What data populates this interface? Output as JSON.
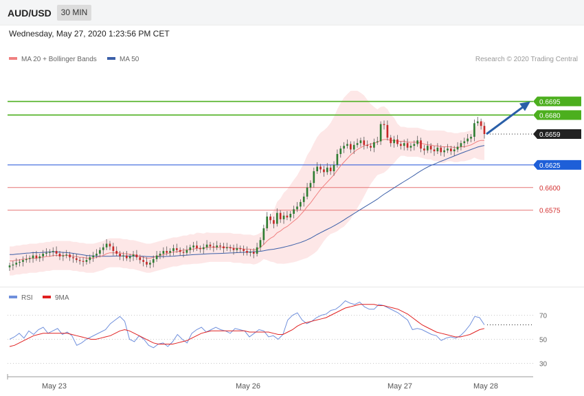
{
  "header": {
    "symbol": "AUD/USD",
    "timeframe": "30 MIN"
  },
  "datetime": "Wednesday, May 27, 2020 1:23:56 PM CET",
  "legend": {
    "ma20_label": "MA 20 + Bollinger Bands",
    "ma50_label": "MA 50",
    "credit": "Research © 2020 Trading Central",
    "rsi_label": "RSI",
    "rsi_ma_label": "9MA"
  },
  "colors": {
    "up": "#2e7d32",
    "down": "#c62828",
    "band": "#fde3e3",
    "ma20": "#f08080",
    "ma50": "#3b5fa8",
    "resistance": "#4caf1e",
    "support_blue": "#1e4fd8",
    "support_red": "#e57373",
    "current": "#222222",
    "arrow": "#2a5fa8",
    "rsi": "#6f8fdc",
    "rsi_ma": "#e02020"
  },
  "chart_data": [
    {
      "type": "candlestick",
      "title": "AUD/USD 30 MIN",
      "x_ticks": [
        "May 23",
        "May 26",
        "May 27",
        "May 28"
      ],
      "ylim": [
        0.6505,
        0.6725
      ],
      "levels": [
        {
          "label": "0.6695",
          "value": 0.6695,
          "kind": "resistance"
        },
        {
          "label": "0.6680",
          "value": 0.668,
          "kind": "resistance"
        },
        {
          "label": "0.6659",
          "value": 0.6659,
          "kind": "current"
        },
        {
          "label": "0.6625",
          "value": 0.6625,
          "kind": "support_blue"
        },
        {
          "label": "0.6600",
          "value": 0.66,
          "kind": "support_red"
        },
        {
          "label": "0.6575",
          "value": 0.6575,
          "kind": "support_red"
        }
      ],
      "target_arrow": {
        "from": 0.6659,
        "to": 0.6695
      },
      "close": [
        0.6514,
        0.6515,
        0.6517,
        0.6518,
        0.652,
        0.6521,
        0.6522,
        0.6525,
        0.6522,
        0.6524,
        0.6527,
        0.6528,
        0.6529,
        0.653,
        0.6527,
        0.6524,
        0.6525,
        0.6526,
        0.6523,
        0.6522,
        0.652,
        0.6519,
        0.6518,
        0.652,
        0.6523,
        0.6525,
        0.6527,
        0.6531,
        0.6534,
        0.6538,
        0.6535,
        0.653,
        0.6527,
        0.6524,
        0.6525,
        0.6522,
        0.6524,
        0.6526,
        0.6523,
        0.652,
        0.6518,
        0.6515,
        0.6517,
        0.6521,
        0.6525,
        0.6527,
        0.653,
        0.6528,
        0.653,
        0.6533,
        0.6531,
        0.6529,
        0.6528,
        0.6531,
        0.6534,
        0.6536,
        0.6533,
        0.6532,
        0.6534,
        0.6537,
        0.6535,
        0.6534,
        0.6536,
        0.6535,
        0.6533,
        0.6534,
        0.6533,
        0.6531,
        0.6533,
        0.6532,
        0.653,
        0.6528,
        0.6529,
        0.6527,
        0.6534,
        0.6542,
        0.6555,
        0.6568,
        0.6564,
        0.656,
        0.6572,
        0.6565,
        0.6569,
        0.6567,
        0.6571,
        0.6576,
        0.6579,
        0.6584,
        0.659,
        0.66,
        0.6605,
        0.6618,
        0.6623,
        0.662,
        0.6617,
        0.6622,
        0.6618,
        0.6625,
        0.6637,
        0.6643,
        0.6646,
        0.6648,
        0.6642,
        0.6647,
        0.6649,
        0.6652,
        0.6647,
        0.6646,
        0.6644,
        0.665,
        0.6651,
        0.667,
        0.6669,
        0.6655,
        0.6649,
        0.6653,
        0.6648,
        0.6646,
        0.6649,
        0.6644,
        0.6646,
        0.6648,
        0.6652,
        0.6643,
        0.6641,
        0.6646,
        0.6642,
        0.664,
        0.6644,
        0.6639,
        0.6641,
        0.6643,
        0.664,
        0.6642,
        0.6645,
        0.6649,
        0.6651,
        0.6654,
        0.6656,
        0.6671,
        0.6673,
        0.6668,
        0.6659
      ],
      "ma20": [
        0.6519,
        0.6519,
        0.652,
        0.652,
        0.6521,
        0.6521,
        0.6522,
        0.6522,
        0.6522,
        0.6523,
        0.6523,
        0.6524,
        0.6524,
        0.6525,
        0.6525,
        0.6525,
        0.6525,
        0.6525,
        0.6525,
        0.6524,
        0.6524,
        0.6523,
        0.6523,
        0.6522,
        0.6522,
        0.6522,
        0.6523,
        0.6524,
        0.6525,
        0.6527,
        0.6528,
        0.6528,
        0.6528,
        0.6528,
        0.6527,
        0.6527,
        0.6526,
        0.6526,
        0.6525,
        0.6524,
        0.6523,
        0.6522,
        0.6522,
        0.6523,
        0.6524,
        0.6525,
        0.6526,
        0.6527,
        0.6528,
        0.6529,
        0.6529,
        0.653,
        0.6531,
        0.6531,
        0.6532,
        0.6532,
        0.6533,
        0.6533,
        0.6533,
        0.6534,
        0.6534,
        0.6534,
        0.6534,
        0.6534,
        0.6534,
        0.6534,
        0.6534,
        0.6533,
        0.6533,
        0.6533,
        0.6532,
        0.6532,
        0.6532,
        0.6531,
        0.6532,
        0.6534,
        0.6537,
        0.6541,
        0.6544,
        0.6546,
        0.655,
        0.6552,
        0.6555,
        0.6557,
        0.656,
        0.6563,
        0.6566,
        0.657,
        0.6574,
        0.6579,
        0.6583,
        0.6588,
        0.6593,
        0.6598,
        0.6602,
        0.6606,
        0.661,
        0.6614,
        0.6619,
        0.6624,
        0.6628,
        0.6632,
        0.6636,
        0.6639,
        0.6642,
        0.6644,
        0.6646,
        0.6647,
        0.6648,
        0.6649,
        0.665,
        0.6652,
        0.6653,
        0.6653,
        0.6652,
        0.6652,
        0.6651,
        0.6651,
        0.6651,
        0.665,
        0.665,
        0.665,
        0.665,
        0.6649,
        0.6648,
        0.6647,
        0.6647,
        0.6646,
        0.6646,
        0.6645,
        0.6645,
        0.6645,
        0.6645,
        0.6644,
        0.6644,
        0.6645,
        0.6645,
        0.6646,
        0.6647,
        0.6649,
        0.6651,
        0.6652,
        0.6652
      ]
    },
    {
      "type": "line",
      "title": "RSI",
      "ylim": [
        20,
        80
      ],
      "y_ticks": [
        70,
        50,
        30
      ],
      "series": [
        {
          "name": "RSI",
          "values": [
            50,
            52,
            55,
            51,
            57,
            54,
            58,
            60,
            55,
            57,
            59,
            54,
            56,
            53,
            45,
            47,
            50,
            52,
            54,
            56,
            58,
            63,
            66,
            69,
            65,
            50,
            48,
            53,
            50,
            45,
            43,
            46,
            47,
            44,
            48,
            54,
            50,
            47,
            55,
            58,
            60,
            56,
            58,
            60,
            58,
            57,
            55,
            59,
            58,
            57,
            52,
            55,
            58,
            57,
            52,
            53,
            50,
            54,
            66,
            70,
            72,
            66,
            63,
            65,
            68,
            70,
            71,
            74,
            75,
            78,
            82,
            80,
            79,
            81,
            77,
            75,
            75,
            79,
            78,
            76,
            74,
            72,
            69,
            66,
            58,
            59,
            58,
            56,
            54,
            53,
            49,
            51,
            52,
            51,
            53,
            57,
            62,
            69,
            68,
            62
          ]
        },
        {
          "name": "9MA",
          "values": [
            44,
            45,
            47,
            49,
            51,
            53,
            54,
            55,
            55,
            55,
            55,
            55,
            55,
            54,
            53,
            52,
            51,
            50,
            50,
            51,
            52,
            53,
            55,
            57,
            58,
            57,
            55,
            53,
            51,
            49,
            47,
            46,
            46,
            46,
            46,
            47,
            48,
            49,
            51,
            53,
            55,
            56,
            57,
            57,
            57,
            57,
            57,
            57,
            57,
            57,
            56,
            56,
            56,
            56,
            56,
            55,
            54,
            54,
            56,
            58,
            61,
            63,
            64,
            65,
            66,
            67,
            68,
            70,
            72,
            74,
            76,
            77,
            78,
            79,
            79,
            79,
            79,
            78,
            78,
            77,
            76,
            75,
            73,
            71,
            68,
            65,
            62,
            60,
            58,
            56,
            55,
            54,
            53,
            52,
            52,
            53,
            54,
            56,
            58,
            59
          ]
        }
      ]
    }
  ]
}
